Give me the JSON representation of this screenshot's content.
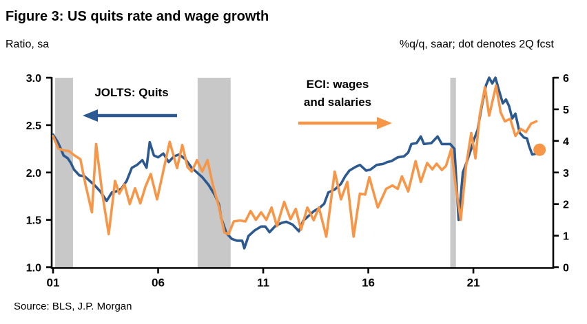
{
  "header": {
    "right_caption": "%q/q, saar; dot denotes 2Q fcst"
  },
  "legend": {
    "jolts": "JOLTS: Quits",
    "eci_line1": "ECI: wages",
    "eci_line2": "and salaries"
  },
  "footer": {
    "source": "Source: BLS, J.P. Morgan"
  },
  "colors": {
    "quits_blue": "#2B5990",
    "eci_orange": "#F79646",
    "recession_gray": "#C8C8C8",
    "axis_black": "#000000",
    "background": "#FFFFFF"
  },
  "chart_data": {
    "type": "line",
    "title": "Figure 3: US quits rate and wage growth",
    "x_axis": {
      "min": 2001.0,
      "max": 2024.8,
      "ticks": [
        2001,
        2006,
        2011,
        2016,
        2021
      ],
      "tick_labels": [
        "01",
        "06",
        "11",
        "16",
        "21"
      ]
    },
    "left_axis": {
      "label": "Ratio, sa",
      "min": 1.0,
      "max": 3.0,
      "tick_values": [
        3.0,
        2.5,
        2.0,
        1.5,
        1.0
      ],
      "tick_labels": [
        "3.0",
        "2.5",
        "2.0",
        "1.5",
        "1.0"
      ]
    },
    "right_axis": {
      "label": "%q/q, saar; dot denotes 2Q fcst",
      "min": 0,
      "max": 6,
      "tick_values": [
        6,
        5,
        4,
        3,
        2,
        1,
        0
      ],
      "tick_labels": [
        "6",
        "5",
        "4",
        "3",
        "2",
        "1",
        "0"
      ]
    },
    "grid": false,
    "recession_bands": [
      [
        2001.1,
        2001.95
      ],
      [
        2007.88,
        2009.45
      ],
      [
        2019.9,
        2020.17
      ]
    ],
    "series": [
      {
        "id": "jolts-quits",
        "name": "JOLTS: Quits",
        "axis": "left",
        "color": "#2B5990",
        "points": [
          [
            2001.0,
            2.4
          ],
          [
            2001.2,
            2.33
          ],
          [
            2001.35,
            2.26
          ],
          [
            2001.5,
            2.18
          ],
          [
            2001.7,
            2.15
          ],
          [
            2001.85,
            2.1
          ],
          [
            2002.0,
            2.03
          ],
          [
            2002.25,
            1.97
          ],
          [
            2002.5,
            1.96
          ],
          [
            2002.75,
            1.91
          ],
          [
            2003.0,
            1.86
          ],
          [
            2003.25,
            1.8
          ],
          [
            2003.55,
            1.7
          ],
          [
            2003.8,
            1.79
          ],
          [
            2004.0,
            1.8
          ],
          [
            2004.25,
            1.83
          ],
          [
            2004.5,
            1.91
          ],
          [
            2004.75,
            2.05
          ],
          [
            2005.0,
            2.08
          ],
          [
            2005.25,
            2.13
          ],
          [
            2005.45,
            2.05
          ],
          [
            2005.6,
            2.32
          ],
          [
            2005.8,
            2.18
          ],
          [
            2006.0,
            2.16
          ],
          [
            2006.25,
            2.2
          ],
          [
            2006.5,
            2.11
          ],
          [
            2006.75,
            2.17
          ],
          [
            2007.0,
            2.19
          ],
          [
            2007.3,
            2.14
          ],
          [
            2007.6,
            2.05
          ],
          [
            2007.85,
            2.0
          ],
          [
            2008.1,
            1.95
          ],
          [
            2008.4,
            1.87
          ],
          [
            2008.7,
            1.76
          ],
          [
            2008.9,
            1.66
          ],
          [
            2009.0,
            1.52
          ],
          [
            2009.25,
            1.36
          ],
          [
            2009.5,
            1.3
          ],
          [
            2009.75,
            1.28
          ],
          [
            2010.0,
            1.28
          ],
          [
            2010.1,
            1.2
          ],
          [
            2010.3,
            1.33
          ],
          [
            2010.6,
            1.39
          ],
          [
            2010.9,
            1.43
          ],
          [
            2011.1,
            1.43
          ],
          [
            2011.3,
            1.37
          ],
          [
            2011.6,
            1.44
          ],
          [
            2011.9,
            1.47
          ],
          [
            2012.1,
            1.48
          ],
          [
            2012.4,
            1.45
          ],
          [
            2012.7,
            1.38
          ],
          [
            2012.9,
            1.49
          ],
          [
            2013.1,
            1.53
          ],
          [
            2013.4,
            1.59
          ],
          [
            2013.7,
            1.63
          ],
          [
            2013.9,
            1.67
          ],
          [
            2014.1,
            1.79
          ],
          [
            2014.4,
            1.82
          ],
          [
            2014.7,
            1.88
          ],
          [
            2014.9,
            1.96
          ],
          [
            2015.1,
            2.02
          ],
          [
            2015.4,
            2.06
          ],
          [
            2015.6,
            2.08
          ],
          [
            2015.9,
            2.02
          ],
          [
            2016.1,
            2.03
          ],
          [
            2016.4,
            2.08
          ],
          [
            2016.7,
            2.09
          ],
          [
            2016.9,
            2.11
          ],
          [
            2017.1,
            2.12
          ],
          [
            2017.4,
            2.16
          ],
          [
            2017.7,
            2.17
          ],
          [
            2017.9,
            2.21
          ],
          [
            2018.05,
            2.3
          ],
          [
            2018.3,
            2.31
          ],
          [
            2018.5,
            2.38
          ],
          [
            2018.65,
            2.3
          ],
          [
            2019.0,
            2.31
          ],
          [
            2019.3,
            2.38
          ],
          [
            2019.5,
            2.3
          ],
          [
            2019.9,
            2.3
          ],
          [
            2020.1,
            2.25
          ],
          [
            2020.3,
            1.5
          ],
          [
            2020.5,
            2.0
          ],
          [
            2020.7,
            2.12
          ],
          [
            2020.9,
            2.25
          ],
          [
            2021.0,
            2.33
          ],
          [
            2021.2,
            2.45
          ],
          [
            2021.4,
            2.7
          ],
          [
            2021.6,
            2.92
          ],
          [
            2021.75,
            3.0
          ],
          [
            2021.9,
            2.94
          ],
          [
            2022.05,
            3.0
          ],
          [
            2022.2,
            2.88
          ],
          [
            2022.4,
            2.73
          ],
          [
            2022.55,
            2.77
          ],
          [
            2022.7,
            2.7
          ],
          [
            2022.85,
            2.57
          ],
          [
            2023.0,
            2.62
          ],
          [
            2023.2,
            2.42
          ],
          [
            2023.4,
            2.37
          ],
          [
            2023.55,
            2.36
          ],
          [
            2023.65,
            2.28
          ],
          [
            2023.8,
            2.19
          ],
          [
            2024.0,
            2.2
          ],
          [
            2024.3,
            2.2
          ]
        ]
      },
      {
        "id": "eci-wages",
        "name": "ECI: wages and salaries",
        "axis": "right",
        "color": "#F79646",
        "points": [
          [
            2001.0,
            4.15
          ],
          [
            2001.25,
            3.76
          ],
          [
            2001.5,
            3.7
          ],
          [
            2001.75,
            3.68
          ],
          [
            2002.0,
            3.55
          ],
          [
            2002.3,
            3.42
          ],
          [
            2002.55,
            2.6
          ],
          [
            2002.85,
            1.74
          ],
          [
            2003.05,
            3.9
          ],
          [
            2003.35,
            2.3
          ],
          [
            2003.65,
            1.05
          ],
          [
            2003.95,
            2.73
          ],
          [
            2004.15,
            2.33
          ],
          [
            2004.4,
            2.62
          ],
          [
            2004.65,
            2.0
          ],
          [
            2004.9,
            2.5
          ],
          [
            2005.15,
            2.02
          ],
          [
            2005.4,
            2.56
          ],
          [
            2005.65,
            2.95
          ],
          [
            2005.95,
            2.15
          ],
          [
            2006.2,
            2.9
          ],
          [
            2006.55,
            3.97
          ],
          [
            2006.9,
            3.14
          ],
          [
            2007.15,
            3.87
          ],
          [
            2007.4,
            3.17
          ],
          [
            2007.6,
            3.03
          ],
          [
            2007.85,
            3.39
          ],
          [
            2008.1,
            3.03
          ],
          [
            2008.35,
            3.39
          ],
          [
            2008.6,
            2.62
          ],
          [
            2008.9,
            1.89
          ],
          [
            2009.15,
            1.1
          ],
          [
            2009.35,
            1.05
          ],
          [
            2009.6,
            1.45
          ],
          [
            2009.9,
            1.48
          ],
          [
            2010.15,
            1.45
          ],
          [
            2010.4,
            1.78
          ],
          [
            2010.65,
            1.5
          ],
          [
            2010.9,
            1.74
          ],
          [
            2011.15,
            1.5
          ],
          [
            2011.4,
            1.89
          ],
          [
            2011.65,
            1.3
          ],
          [
            2012.0,
            2.07
          ],
          [
            2012.3,
            1.52
          ],
          [
            2012.55,
            1.85
          ],
          [
            2012.8,
            1.19
          ],
          [
            2013.1,
            1.89
          ],
          [
            2013.4,
            1.49
          ],
          [
            2013.65,
            1.89
          ],
          [
            2014.0,
            0.97
          ],
          [
            2014.4,
            3.03
          ],
          [
            2014.7,
            2.15
          ],
          [
            2015.0,
            2.7
          ],
          [
            2015.3,
            0.97
          ],
          [
            2015.6,
            2.33
          ],
          [
            2015.85,
            2.3
          ],
          [
            2016.05,
            2.85
          ],
          [
            2016.45,
            1.89
          ],
          [
            2016.85,
            2.48
          ],
          [
            2017.15,
            2.59
          ],
          [
            2017.4,
            2.48
          ],
          [
            2017.6,
            2.88
          ],
          [
            2017.9,
            2.4
          ],
          [
            2018.25,
            3.36
          ],
          [
            2018.5,
            2.7
          ],
          [
            2018.8,
            3.3
          ],
          [
            2019.05,
            3.1
          ],
          [
            2019.25,
            3.28
          ],
          [
            2019.5,
            3.08
          ],
          [
            2019.7,
            3.21
          ],
          [
            2019.95,
            3.75
          ],
          [
            2020.15,
            2.6
          ],
          [
            2020.4,
            1.5
          ],
          [
            2020.65,
            3.2
          ],
          [
            2020.9,
            4.25
          ],
          [
            2021.1,
            3.45
          ],
          [
            2021.3,
            4.8
          ],
          [
            2021.55,
            5.7
          ],
          [
            2021.75,
            4.8
          ],
          [
            2022.08,
            5.75
          ],
          [
            2022.3,
            4.9
          ],
          [
            2022.5,
            4.62
          ],
          [
            2022.75,
            4.7
          ],
          [
            2023.0,
            4.16
          ],
          [
            2023.25,
            4.38
          ],
          [
            2023.5,
            4.28
          ],
          [
            2023.75,
            4.55
          ],
          [
            2024.0,
            4.62
          ]
        ]
      }
    ],
    "forecast_dot": {
      "series": "eci-wages",
      "x": 2024.15,
      "value": 3.72,
      "note": "dot denotes 2Q fcst"
    }
  }
}
